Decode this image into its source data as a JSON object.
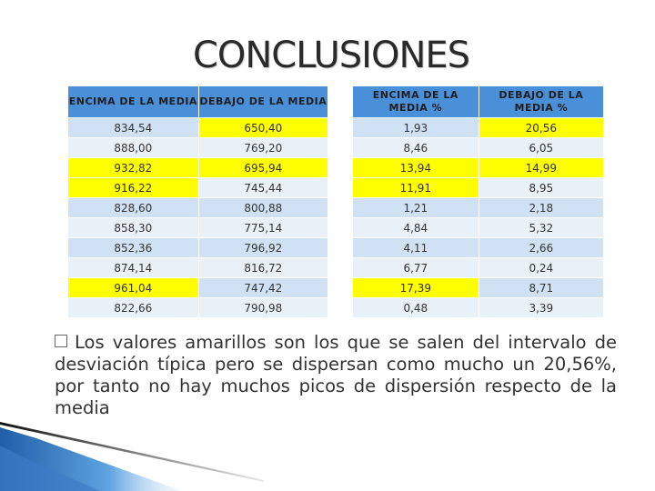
{
  "title": "CONCLUSIONES",
  "table_a": {
    "headers": [
      "ENCIMA DE LA MEDIA",
      "DEBAJO DE LA MEDIA"
    ],
    "rows": [
      {
        "cells": [
          "834,54",
          "650,40"
        ],
        "highlight": [
          false,
          true
        ]
      },
      {
        "cells": [
          "888,00",
          "769,20"
        ],
        "highlight": [
          false,
          false
        ]
      },
      {
        "cells": [
          "932,82",
          "695,94"
        ],
        "highlight": [
          true,
          true
        ]
      },
      {
        "cells": [
          "916,22",
          "745,44"
        ],
        "highlight": [
          true,
          false
        ]
      },
      {
        "cells": [
          "828,60",
          "800,88"
        ],
        "highlight": [
          false,
          false
        ]
      },
      {
        "cells": [
          "858,30",
          "775,14"
        ],
        "highlight": [
          false,
          false
        ]
      },
      {
        "cells": [
          "852,36",
          "796,92"
        ],
        "highlight": [
          false,
          false
        ]
      },
      {
        "cells": [
          "874,14",
          "816,72"
        ],
        "highlight": [
          false,
          false
        ]
      },
      {
        "cells": [
          "961,04",
          "747,42"
        ],
        "highlight": [
          true,
          false
        ]
      },
      {
        "cells": [
          "822,66",
          "790,98"
        ],
        "highlight": [
          false,
          false
        ]
      }
    ]
  },
  "table_b": {
    "headers": [
      "ENCIMA DE LA MEDIA %",
      "DEBAJO DE LA MEDIA %"
    ],
    "rows": [
      {
        "cells": [
          "1,93",
          "20,56"
        ],
        "highlight": [
          false,
          true
        ]
      },
      {
        "cells": [
          "8,46",
          "6,05"
        ],
        "highlight": [
          false,
          false
        ]
      },
      {
        "cells": [
          "13,94",
          "14,99"
        ],
        "highlight": [
          true,
          true
        ]
      },
      {
        "cells": [
          "11,91",
          "8,95"
        ],
        "highlight": [
          true,
          false
        ]
      },
      {
        "cells": [
          "1,21",
          "2,18"
        ],
        "highlight": [
          false,
          false
        ]
      },
      {
        "cells": [
          "4,84",
          "5,32"
        ],
        "highlight": [
          false,
          false
        ]
      },
      {
        "cells": [
          "4,11",
          "2,66"
        ],
        "highlight": [
          false,
          false
        ]
      },
      {
        "cells": [
          "6,77",
          "0,24"
        ],
        "highlight": [
          false,
          false
        ]
      },
      {
        "cells": [
          "17,39",
          "8,71"
        ],
        "highlight": [
          true,
          false
        ]
      },
      {
        "cells": [
          "0,48",
          "3,39"
        ],
        "highlight": [
          false,
          false
        ]
      }
    ]
  },
  "conclusion": "Los valores amarillos son los que se salen del intervalo de desviación típica pero se dispersan como mucho un 20,56%, por tanto no hay muchos picos de dispersión respecto de la media",
  "colors": {
    "header": "#4a90d9",
    "row_odd": "#cfe1f3",
    "row_even": "#e8f0f8",
    "highlight": "#ffff00"
  }
}
